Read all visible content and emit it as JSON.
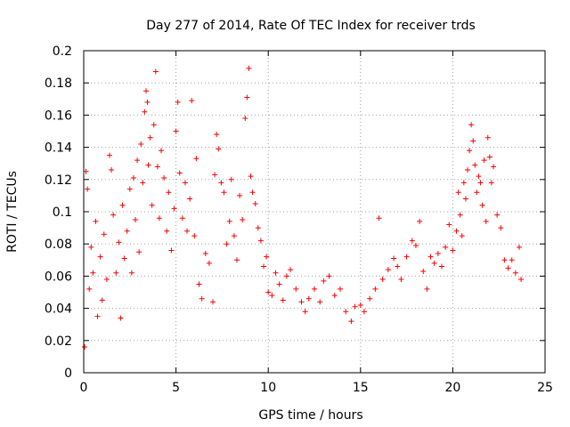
{
  "chart_data": {
    "type": "scatter",
    "title": "Day 277 of 2014, Rate Of TEC Index for receiver trds",
    "xlabel": "GPS time / hours",
    "ylabel": "ROTI / TECUs",
    "xlim": [
      0,
      25
    ],
    "ylim": [
      0,
      0.2
    ],
    "x_ticks": [
      0,
      5,
      10,
      15,
      20,
      25
    ],
    "x_tick_labels": [
      "0",
      "5",
      "10",
      "15",
      "20",
      "25"
    ],
    "y_ticks": [
      0,
      0.02,
      0.04,
      0.06,
      0.08,
      0.1,
      0.12,
      0.14,
      0.16,
      0.18,
      0.2
    ],
    "y_tick_labels": [
      "0",
      "0.02",
      "0.04",
      "0.06",
      "0.08",
      "0.1",
      "0.12",
      "0.14",
      "0.16",
      "0.18",
      "0.2"
    ],
    "grid": true,
    "marker": "plus",
    "color": "#ff0000",
    "series": [
      {
        "name": "",
        "points": [
          [
            0.05,
            0.016
          ],
          [
            0.12,
            0.125
          ],
          [
            0.2,
            0.114
          ],
          [
            0.3,
            0.052
          ],
          [
            0.4,
            0.078
          ],
          [
            0.5,
            0.062
          ],
          [
            0.65,
            0.094
          ],
          [
            0.75,
            0.035
          ],
          [
            0.9,
            0.072
          ],
          [
            1.0,
            0.045
          ],
          [
            1.1,
            0.086
          ],
          [
            1.25,
            0.058
          ],
          [
            1.4,
            0.135
          ],
          [
            1.5,
            0.126
          ],
          [
            1.6,
            0.098
          ],
          [
            1.75,
            0.062
          ],
          [
            1.9,
            0.081
          ],
          [
            2.0,
            0.034
          ],
          [
            2.1,
            0.104
          ],
          [
            2.2,
            0.071
          ],
          [
            2.35,
            0.088
          ],
          [
            2.5,
            0.114
          ],
          [
            2.6,
            0.062
          ],
          [
            2.7,
            0.121
          ],
          [
            2.8,
            0.095
          ],
          [
            2.9,
            0.132
          ],
          [
            3.0,
            0.075
          ],
          [
            3.1,
            0.142
          ],
          [
            3.2,
            0.118
          ],
          [
            3.3,
            0.162
          ],
          [
            3.38,
            0.175
          ],
          [
            3.45,
            0.168
          ],
          [
            3.5,
            0.129
          ],
          [
            3.6,
            0.146
          ],
          [
            3.7,
            0.104
          ],
          [
            3.8,
            0.154
          ],
          [
            3.9,
            0.187
          ],
          [
            4.0,
            0.128
          ],
          [
            4.1,
            0.096
          ],
          [
            4.2,
            0.138
          ],
          [
            4.35,
            0.121
          ],
          [
            4.5,
            0.088
          ],
          [
            4.6,
            0.112
          ],
          [
            4.75,
            0.076
          ],
          [
            4.9,
            0.102
          ],
          [
            5.0,
            0.15
          ],
          [
            5.1,
            0.168
          ],
          [
            5.2,
            0.124
          ],
          [
            5.35,
            0.096
          ],
          [
            5.5,
            0.118
          ],
          [
            5.6,
            0.088
          ],
          [
            5.75,
            0.108
          ],
          [
            5.85,
            0.169
          ],
          [
            6.0,
            0.085
          ],
          [
            6.1,
            0.133
          ],
          [
            6.25,
            0.055
          ],
          [
            6.4,
            0.046
          ],
          [
            6.6,
            0.074
          ],
          [
            6.8,
            0.068
          ],
          [
            7.0,
            0.044
          ],
          [
            7.1,
            0.123
          ],
          [
            7.2,
            0.148
          ],
          [
            7.3,
            0.139
          ],
          [
            7.45,
            0.118
          ],
          [
            7.6,
            0.112
          ],
          [
            7.75,
            0.08
          ],
          [
            7.9,
            0.094
          ],
          [
            8.0,
            0.12
          ],
          [
            8.15,
            0.085
          ],
          [
            8.3,
            0.07
          ],
          [
            8.45,
            0.11
          ],
          [
            8.6,
            0.095
          ],
          [
            8.75,
            0.158
          ],
          [
            8.85,
            0.171
          ],
          [
            8.95,
            0.189
          ],
          [
            9.05,
            0.122
          ],
          [
            9.15,
            0.112
          ],
          [
            9.3,
            0.105
          ],
          [
            9.45,
            0.09
          ],
          [
            9.6,
            0.082
          ],
          [
            9.75,
            0.066
          ],
          [
            9.9,
            0.072
          ],
          [
            10.0,
            0.05
          ],
          [
            10.2,
            0.048
          ],
          [
            10.4,
            0.062
          ],
          [
            10.6,
            0.055
          ],
          [
            10.8,
            0.045
          ],
          [
            11.0,
            0.06
          ],
          [
            11.2,
            0.064
          ],
          [
            11.5,
            0.052
          ],
          [
            11.8,
            0.044
          ],
          [
            12.0,
            0.038
          ],
          [
            12.2,
            0.046
          ],
          [
            12.5,
            0.052
          ],
          [
            12.8,
            0.044
          ],
          [
            13.0,
            0.057
          ],
          [
            13.3,
            0.06
          ],
          [
            13.6,
            0.048
          ],
          [
            13.9,
            0.052
          ],
          [
            14.2,
            0.038
          ],
          [
            14.5,
            0.032
          ],
          [
            14.7,
            0.041
          ],
          [
            15.0,
            0.042
          ],
          [
            15.2,
            0.038
          ],
          [
            15.5,
            0.046
          ],
          [
            15.8,
            0.052
          ],
          [
            16.0,
            0.096
          ],
          [
            16.2,
            0.058
          ],
          [
            16.5,
            0.064
          ],
          [
            16.8,
            0.071
          ],
          [
            17.0,
            0.066
          ],
          [
            17.2,
            0.058
          ],
          [
            17.5,
            0.072
          ],
          [
            17.8,
            0.082
          ],
          [
            18.0,
            0.079
          ],
          [
            18.2,
            0.094
          ],
          [
            18.4,
            0.063
          ],
          [
            18.6,
            0.052
          ],
          [
            18.8,
            0.072
          ],
          [
            19.0,
            0.068
          ],
          [
            19.2,
            0.074
          ],
          [
            19.4,
            0.066
          ],
          [
            19.6,
            0.078
          ],
          [
            19.8,
            0.092
          ],
          [
            20.0,
            0.076
          ],
          [
            20.2,
            0.088
          ],
          [
            20.3,
            0.112
          ],
          [
            20.4,
            0.098
          ],
          [
            20.5,
            0.085
          ],
          [
            20.6,
            0.118
          ],
          [
            20.7,
            0.108
          ],
          [
            20.8,
            0.126
          ],
          [
            20.9,
            0.138
          ],
          [
            21.0,
            0.154
          ],
          [
            21.1,
            0.144
          ],
          [
            21.2,
            0.129
          ],
          [
            21.3,
            0.112
          ],
          [
            21.4,
            0.122
          ],
          [
            21.5,
            0.118
          ],
          [
            21.6,
            0.104
          ],
          [
            21.7,
            0.132
          ],
          [
            21.8,
            0.094
          ],
          [
            21.9,
            0.146
          ],
          [
            22.0,
            0.134
          ],
          [
            22.1,
            0.118
          ],
          [
            22.2,
            0.128
          ],
          [
            22.4,
            0.098
          ],
          [
            22.6,
            0.09
          ],
          [
            22.8,
            0.07
          ],
          [
            23.0,
            0.065
          ],
          [
            23.2,
            0.07
          ],
          [
            23.4,
            0.062
          ],
          [
            23.6,
            0.078
          ],
          [
            23.7,
            0.058
          ]
        ]
      }
    ]
  }
}
